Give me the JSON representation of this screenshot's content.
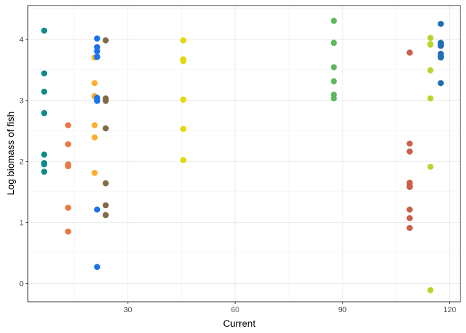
{
  "chart_data": {
    "type": "scatter",
    "title": "",
    "xlabel": "Current",
    "ylabel": "Log biomass of fish",
    "xlim": [
      2,
      123
    ],
    "ylim": [
      -0.3,
      4.55
    ],
    "x_ticks": [
      30,
      60,
      90,
      120
    ],
    "y_ticks": [
      0,
      1,
      2,
      3,
      4
    ],
    "x_tick_labels": [
      "30",
      "60",
      "90",
      "120"
    ],
    "y_tick_labels": [
      "0",
      "1",
      "2",
      "3",
      "4"
    ],
    "grid": true,
    "legend": "none",
    "series": [
      {
        "color": "#0f8a8a",
        "x": [
          6.6,
          6.6,
          6.6,
          6.6,
          6.6,
          6.6,
          6.6,
          6.6
        ],
        "values": [
          4.14,
          3.44,
          3.14,
          2.79,
          2.11,
          1.97,
          1.95,
          1.83
        ]
      },
      {
        "color": "#ea7a44",
        "x": [
          13.3,
          13.3,
          13.3,
          13.3,
          13.3,
          13.3
        ],
        "values": [
          2.59,
          2.28,
          1.95,
          1.92,
          1.24,
          0.85
        ]
      },
      {
        "color": "#ffad33",
        "x": [
          20.7,
          20.7,
          20.7,
          20.7,
          20.7,
          20.7,
          20.7
        ],
        "values": [
          3.7,
          3.28,
          3.07,
          2.59,
          2.39,
          1.81,
          3.06
        ]
      },
      {
        "color": "#1a73e8",
        "x": [
          21.4,
          21.4,
          21.4,
          21.4,
          21.4,
          21.4,
          21.4,
          21.4,
          21.4
        ],
        "values": [
          4.01,
          3.87,
          3.8,
          3.71,
          3.04,
          2.99,
          1.21,
          0.27,
          3.71
        ]
      },
      {
        "color": "#7f6b47",
        "x": [
          23.8,
          23.8,
          23.8,
          23.8,
          23.8,
          23.8,
          23.8
        ],
        "values": [
          3.98,
          3.03,
          2.99,
          2.54,
          1.64,
          1.28,
          1.12
        ]
      },
      {
        "color": "#e3d80e",
        "x": [
          45.5,
          45.5,
          45.5,
          45.5,
          45.5,
          45.5
        ],
        "values": [
          3.98,
          3.67,
          3.64,
          3.01,
          2.53,
          2.02
        ]
      },
      {
        "color": "#5cb85c",
        "x": [
          87.6,
          87.6,
          87.6,
          87.6,
          87.6,
          87.6
        ],
        "values": [
          4.3,
          3.94,
          3.54,
          3.31,
          3.09,
          3.03
        ]
      },
      {
        "color": "#c9604a",
        "x": [
          108.8,
          108.8,
          108.8,
          108.8,
          108.8,
          108.8,
          108.8,
          108.8,
          108.8
        ],
        "values": [
          3.78,
          2.29,
          2.16,
          1.65,
          1.6,
          1.58,
          1.21,
          1.07,
          0.91
        ]
      },
      {
        "color": "#b5d62d",
        "x": [
          114.6,
          114.6,
          114.6,
          114.6,
          114.6,
          114.6,
          114.6
        ],
        "values": [
          4.02,
          3.92,
          3.49,
          3.03,
          1.91,
          -0.11,
          3.91
        ]
      },
      {
        "color": "#1f6fb5",
        "x": [
          117.5,
          117.5,
          117.5,
          117.5,
          117.5,
          117.5,
          117.5,
          117.5
        ],
        "values": [
          4.25,
          3.94,
          3.89,
          3.76,
          3.7,
          3.28,
          3.91,
          3.72
        ]
      }
    ]
  }
}
